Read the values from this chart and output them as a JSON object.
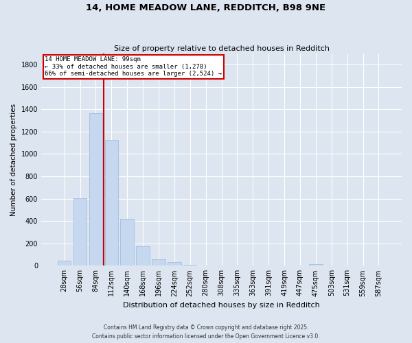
{
  "title": "14, HOME MEADOW LANE, REDDITCH, B98 9NE",
  "subtitle": "Size of property relative to detached houses in Redditch",
  "xlabel": "Distribution of detached houses by size in Redditch",
  "ylabel": "Number of detached properties",
  "bar_color": "#c5d8ef",
  "bar_edge_color": "#9ab8d8",
  "background_color": "#dde5f0",
  "plot_bg_color": "#dde5f0",
  "grid_color": "#ffffff",
  "categories": [
    "28sqm",
    "56sqm",
    "84sqm",
    "112sqm",
    "140sqm",
    "168sqm",
    "196sqm",
    "224sqm",
    "252sqm",
    "280sqm",
    "308sqm",
    "335sqm",
    "363sqm",
    "391sqm",
    "419sqm",
    "447sqm",
    "475sqm",
    "503sqm",
    "531sqm",
    "559sqm",
    "587sqm"
  ],
  "values": [
    45,
    605,
    1365,
    1125,
    420,
    175,
    60,
    30,
    5,
    0,
    0,
    0,
    0,
    0,
    0,
    0,
    15,
    0,
    0,
    0,
    0
  ],
  "ylim": [
    0,
    1900
  ],
  "yticks": [
    0,
    200,
    400,
    600,
    800,
    1000,
    1200,
    1400,
    1600,
    1800
  ],
  "vline_x": 2.5,
  "annotation_line1": "14 HOME MEADOW LANE: 99sqm",
  "annotation_line2": "← 33% of detached houses are smaller (1,278)",
  "annotation_line3": "66% of semi-detached houses are larger (2,524) →",
  "annotation_box_facecolor": "#ffffff",
  "annotation_box_edgecolor": "#cc0000",
  "vline_color": "#cc0000",
  "footer_line1": "Contains HM Land Registry data © Crown copyright and database right 2025.",
  "footer_line2": "Contains public sector information licensed under the Open Government Licence v3.0."
}
